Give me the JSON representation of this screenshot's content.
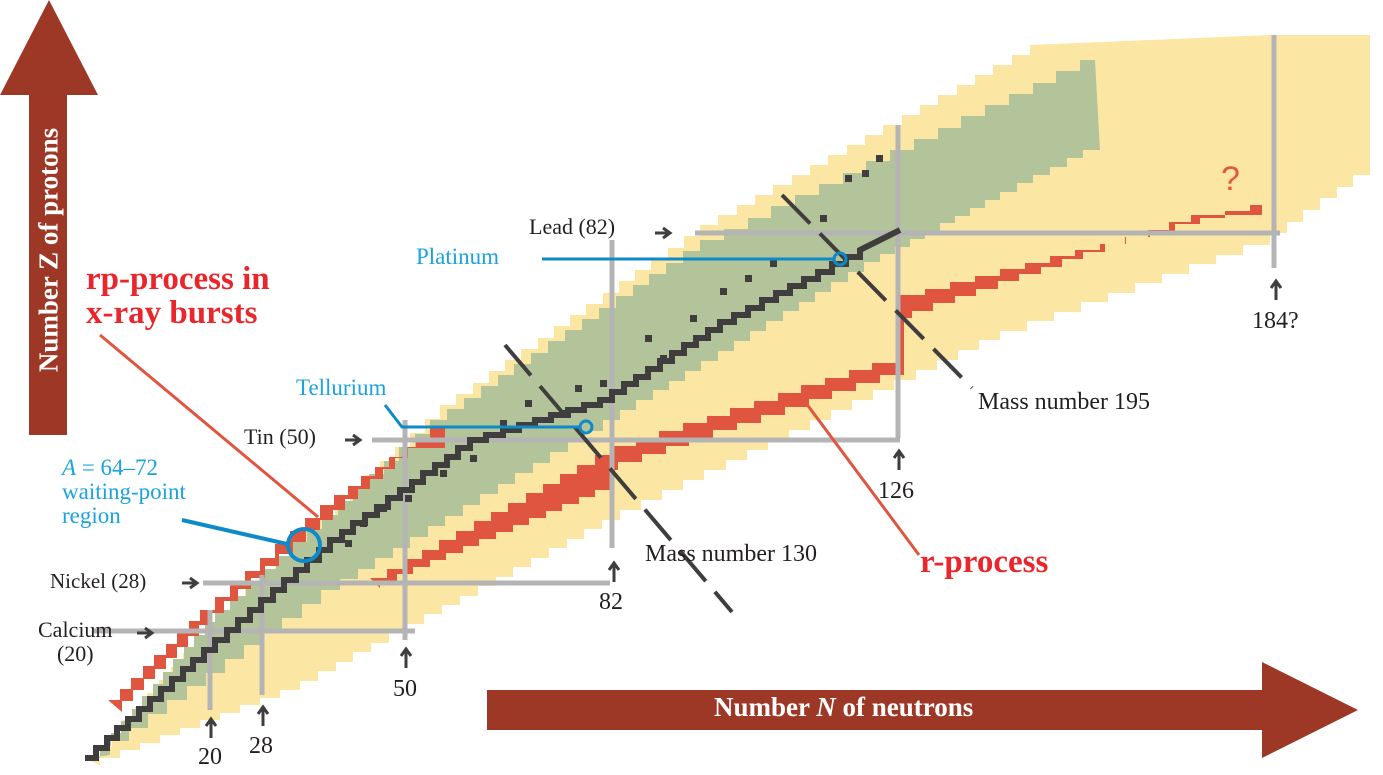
{
  "title": "Chart of nuclides: nucleosynthesis paths",
  "axes": {
    "y_label": "Number Z of protons",
    "x_label_prefix": "Number ",
    "x_label_var": "N",
    "x_label_suffix": " of neutrons",
    "arrow_color": "#9e3826"
  },
  "colors": {
    "stable": "#3f3d3d",
    "known": "#b3c49b",
    "predicted": "#fce6a3",
    "rprocess": "#e05540",
    "magic": "#b5b4b4",
    "callout_blue": "#0e8ac8",
    "label_red": "#e8262b",
    "label_blue": "#1aa3dd"
  },
  "magic_numbers": {
    "protons": [
      {
        "label": "Calcium",
        "sub": "(20)",
        "z": 20
      },
      {
        "label": "Nickel (28)",
        "z": 28
      },
      {
        "label": "Tin (50)",
        "z": 50
      },
      {
        "label": "Lead (82)",
        "z": 82
      }
    ],
    "neutrons": [
      {
        "label": "20",
        "n": 20
      },
      {
        "label": "28",
        "n": 28
      },
      {
        "label": "50",
        "n": 50
      },
      {
        "label": "82",
        "n": 82
      },
      {
        "label": "126",
        "n": 126
      },
      {
        "label": "184?",
        "n": 184
      }
    ]
  },
  "annotations": {
    "rp_process": "rp-process in\nx-ray bursts",
    "rp_line1": "rp-process in",
    "rp_line2": "x-ray bursts",
    "waiting_point_italic": "A",
    "waiting_point_line1": " = 64–72",
    "waiting_point_line2": "waiting-point",
    "waiting_point_line3": "region",
    "tellurium": "Tellurium",
    "platinum": "Platinum",
    "mass_130": "Mass number 130",
    "mass_195": "Mass number 195",
    "r_process": "r-process",
    "unknown_mark": "?"
  },
  "chart_data": {
    "type": "diagram",
    "title": "",
    "xlabel": "Number N of neutrons",
    "ylabel": "Number Z of protons",
    "regions": [
      "stable nuclei (black)",
      "known nuclei (green)",
      "predicted nuclei (yellow)",
      "r-process path (red)",
      "rp-process path (red, proton-rich edge)"
    ],
    "proton_magic": [
      20,
      28,
      50,
      82
    ],
    "neutron_magic": [
      20,
      28,
      50,
      82,
      126,
      184
    ],
    "mass_lines": [
      130,
      195
    ],
    "highlighted": [
      "Tellurium",
      "Platinum",
      "A = 64–72 waiting-point region"
    ]
  }
}
